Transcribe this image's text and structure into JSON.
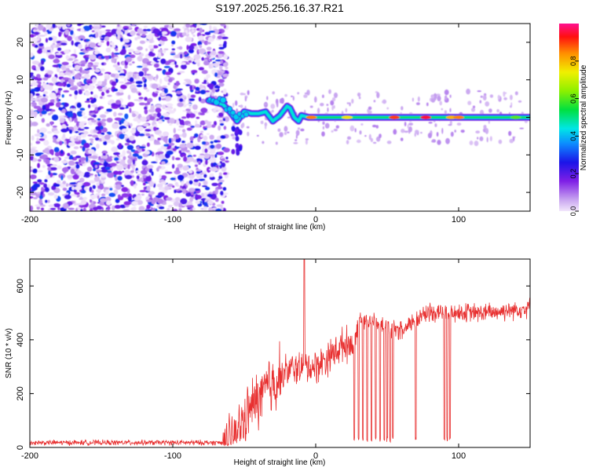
{
  "title": "S197.2025.256.16.37.R21",
  "chart_data": [
    {
      "type": "heatmap",
      "name": "spectrogram",
      "xlabel": "Height of straight line (km)",
      "ylabel": "Frequency (Hz)",
      "xlim": [
        -200,
        150
      ],
      "ylim": [
        -25,
        25
      ],
      "xticks": [
        -200,
        -100,
        0,
        100
      ],
      "yticks": [
        -20,
        -10,
        0,
        10,
        20
      ],
      "colorbar": {
        "label": "Normalized spectral amplitude",
        "range": [
          0,
          1
        ],
        "ticks": [
          0.0,
          0.2,
          0.4,
          0.6,
          0.8
        ]
      },
      "noise_region_x": [
        -200,
        -62
      ],
      "signal_line": {
        "x": [
          -75,
          -70,
          -65,
          -60,
          -55,
          -50,
          -45,
          -40,
          -35,
          -30,
          -25,
          -20,
          -18,
          -15,
          -12,
          -10,
          -5,
          0,
          20,
          50,
          80,
          100,
          120,
          150
        ],
        "y": [
          4.5,
          4.0,
          3.5,
          1.5,
          -1,
          1.5,
          1.0,
          1.0,
          1.5,
          -1.0,
          0.5,
          3.0,
          2.5,
          0,
          -1.0,
          0.5,
          0,
          0,
          0,
          0,
          0,
          0,
          0,
          0
        ]
      },
      "peaks": [
        {
          "x": -3,
          "amp": 0.85
        },
        {
          "x": 22,
          "amp": 0.75
        },
        {
          "x": 55,
          "amp": 0.9
        },
        {
          "x": 77,
          "amp": 0.95
        },
        {
          "x": 95,
          "amp": 0.8
        },
        {
          "x": 100,
          "amp": 0.85
        },
        {
          "x": 140,
          "amp": 0.6
        }
      ]
    },
    {
      "type": "line",
      "name": "snr",
      "xlabel": "Height of straight line (km)",
      "ylabel": "SNR (10 * v/v)",
      "xlim": [
        -200,
        150
      ],
      "ylim": [
        0,
        700
      ],
      "xticks": [
        -200,
        -100,
        0,
        100
      ],
      "yticks": [
        0,
        200,
        400,
        600
      ],
      "color": "#e83030",
      "trend": {
        "x": [
          -200,
          -65,
          -55,
          -45,
          -30,
          -20,
          -10,
          0,
          10,
          20,
          27,
          30,
          40,
          50,
          60,
          62,
          70,
          80,
          100,
          120,
          150
        ],
        "y": [
          18,
          18,
          60,
          150,
          240,
          285,
          300,
          300,
          340,
          385,
          385,
          480,
          470,
          445,
          430,
          430,
          480,
          505,
          500,
          500,
          520
        ]
      },
      "spike_x": -8,
      "spike_y": 700,
      "dropout_x": [
        27,
        30,
        33,
        36,
        39,
        42,
        45,
        48,
        50,
        52,
        54,
        70,
        90,
        92,
        94
      ]
    }
  ]
}
